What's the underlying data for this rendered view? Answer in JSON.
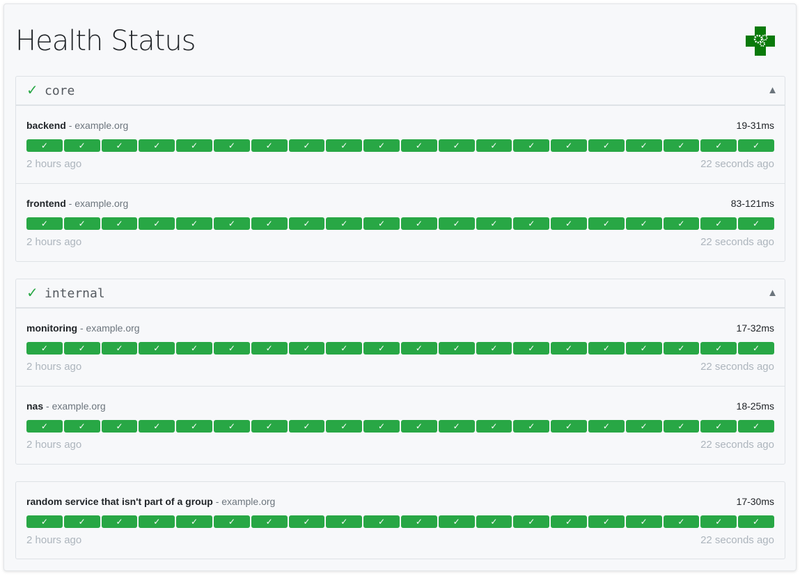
{
  "page": {
    "title": "Health Status",
    "logo_icon": "green-cross-gears-logo"
  },
  "colors": {
    "success": "#28a745",
    "muted": "#adb5bd"
  },
  "groups": [
    {
      "name": "core",
      "status_icon": "✓",
      "caret": "▲",
      "services": [
        {
          "name": "backend",
          "host": "- example.org",
          "response_time": "19-31ms",
          "results": [
            "✓",
            "✓",
            "✓",
            "✓",
            "✓",
            "✓",
            "✓",
            "✓",
            "✓",
            "✓",
            "✓",
            "✓",
            "✓",
            "✓",
            "✓",
            "✓",
            "✓",
            "✓",
            "✓",
            "✓"
          ],
          "oldest": "2 hours ago",
          "newest": "22 seconds ago"
        },
        {
          "name": "frontend",
          "host": "- example.org",
          "response_time": "83-121ms",
          "results": [
            "✓",
            "✓",
            "✓",
            "✓",
            "✓",
            "✓",
            "✓",
            "✓",
            "✓",
            "✓",
            "✓",
            "✓",
            "✓",
            "✓",
            "✓",
            "✓",
            "✓",
            "✓",
            "✓",
            "✓"
          ],
          "oldest": "2 hours ago",
          "newest": "22 seconds ago"
        }
      ]
    },
    {
      "name": "internal",
      "status_icon": "✓",
      "caret": "▲",
      "services": [
        {
          "name": "monitoring",
          "host": "- example.org",
          "response_time": "17-32ms",
          "results": [
            "✓",
            "✓",
            "✓",
            "✓",
            "✓",
            "✓",
            "✓",
            "✓",
            "✓",
            "✓",
            "✓",
            "✓",
            "✓",
            "✓",
            "✓",
            "✓",
            "✓",
            "✓",
            "✓",
            "✓"
          ],
          "oldest": "2 hours ago",
          "newest": "22 seconds ago"
        },
        {
          "name": "nas",
          "host": "- example.org",
          "response_time": "18-25ms",
          "results": [
            "✓",
            "✓",
            "✓",
            "✓",
            "✓",
            "✓",
            "✓",
            "✓",
            "✓",
            "✓",
            "✓",
            "✓",
            "✓",
            "✓",
            "✓",
            "✓",
            "✓",
            "✓",
            "✓",
            "✓"
          ],
          "oldest": "2 hours ago",
          "newest": "22 seconds ago"
        }
      ]
    },
    {
      "name": null,
      "services": [
        {
          "name": "random service that isn't part of a group",
          "host": "- example.org",
          "response_time": "17-30ms",
          "results": [
            "✓",
            "✓",
            "✓",
            "✓",
            "✓",
            "✓",
            "✓",
            "✓",
            "✓",
            "✓",
            "✓",
            "✓",
            "✓",
            "✓",
            "✓",
            "✓",
            "✓",
            "✓",
            "✓",
            "✓"
          ],
          "oldest": "2 hours ago",
          "newest": "22 seconds ago"
        }
      ]
    }
  ]
}
